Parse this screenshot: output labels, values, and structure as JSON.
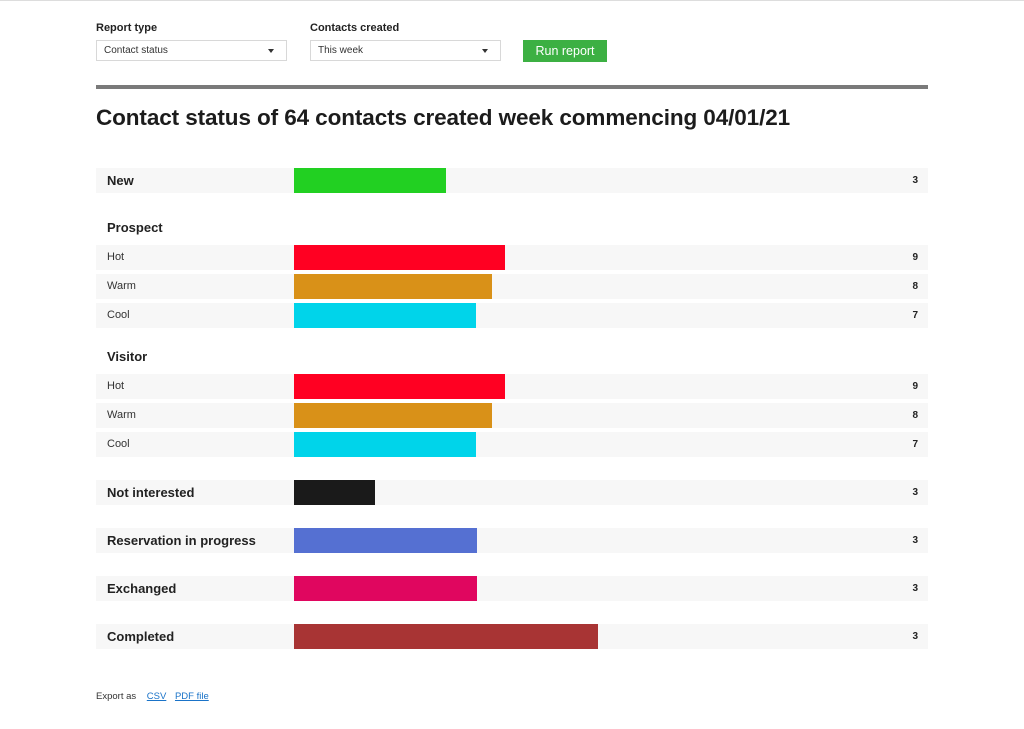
{
  "filters": {
    "report_type_label": "Report type",
    "report_type_value": "Contact status",
    "contacts_created_label": "Contacts created",
    "contacts_created_value": "This week",
    "run_button": "Run report"
  },
  "title": "Contact status of 64 contacts created week commencing 04/01/21",
  "rows": [
    {
      "kind": "major",
      "label": "New",
      "value": "3",
      "fill": 0.24,
      "color": "#22d022"
    },
    {
      "kind": "group",
      "label": "Prospect"
    },
    {
      "kind": "minor",
      "label": "Hot",
      "value": "9",
      "fill": 0.333,
      "color": "#ff0022"
    },
    {
      "kind": "minor",
      "label": "Warm",
      "value": "8",
      "fill": 0.312,
      "color": "#d99118"
    },
    {
      "kind": "minor",
      "label": "Cool",
      "value": "7",
      "fill": 0.287,
      "color": "#00d4ea"
    },
    {
      "kind": "group",
      "label": "Visitor"
    },
    {
      "kind": "minor",
      "label": "Hot",
      "value": "9",
      "fill": 0.333,
      "color": "#ff0022"
    },
    {
      "kind": "minor",
      "label": "Warm",
      "value": "8",
      "fill": 0.312,
      "color": "#d99118"
    },
    {
      "kind": "minor",
      "label": "Cool",
      "value": "7",
      "fill": 0.287,
      "color": "#00d4ea"
    },
    {
      "kind": "major",
      "label": "Not interested",
      "value": "3",
      "fill": 0.128,
      "color": "#1a1a1a"
    },
    {
      "kind": "major",
      "label": "Reservation in progress",
      "value": "3",
      "fill": 0.289,
      "color": "#5570d2"
    },
    {
      "kind": "major",
      "label": "Exchanged",
      "value": "3",
      "fill": 0.289,
      "color": "#e0065f"
    },
    {
      "kind": "major",
      "label": "Completed",
      "value": "3",
      "fill": 0.48,
      "color": "#a83434"
    }
  ],
  "export": {
    "label": "Export as",
    "csv": "CSV",
    "pdf": "PDF file"
  }
}
